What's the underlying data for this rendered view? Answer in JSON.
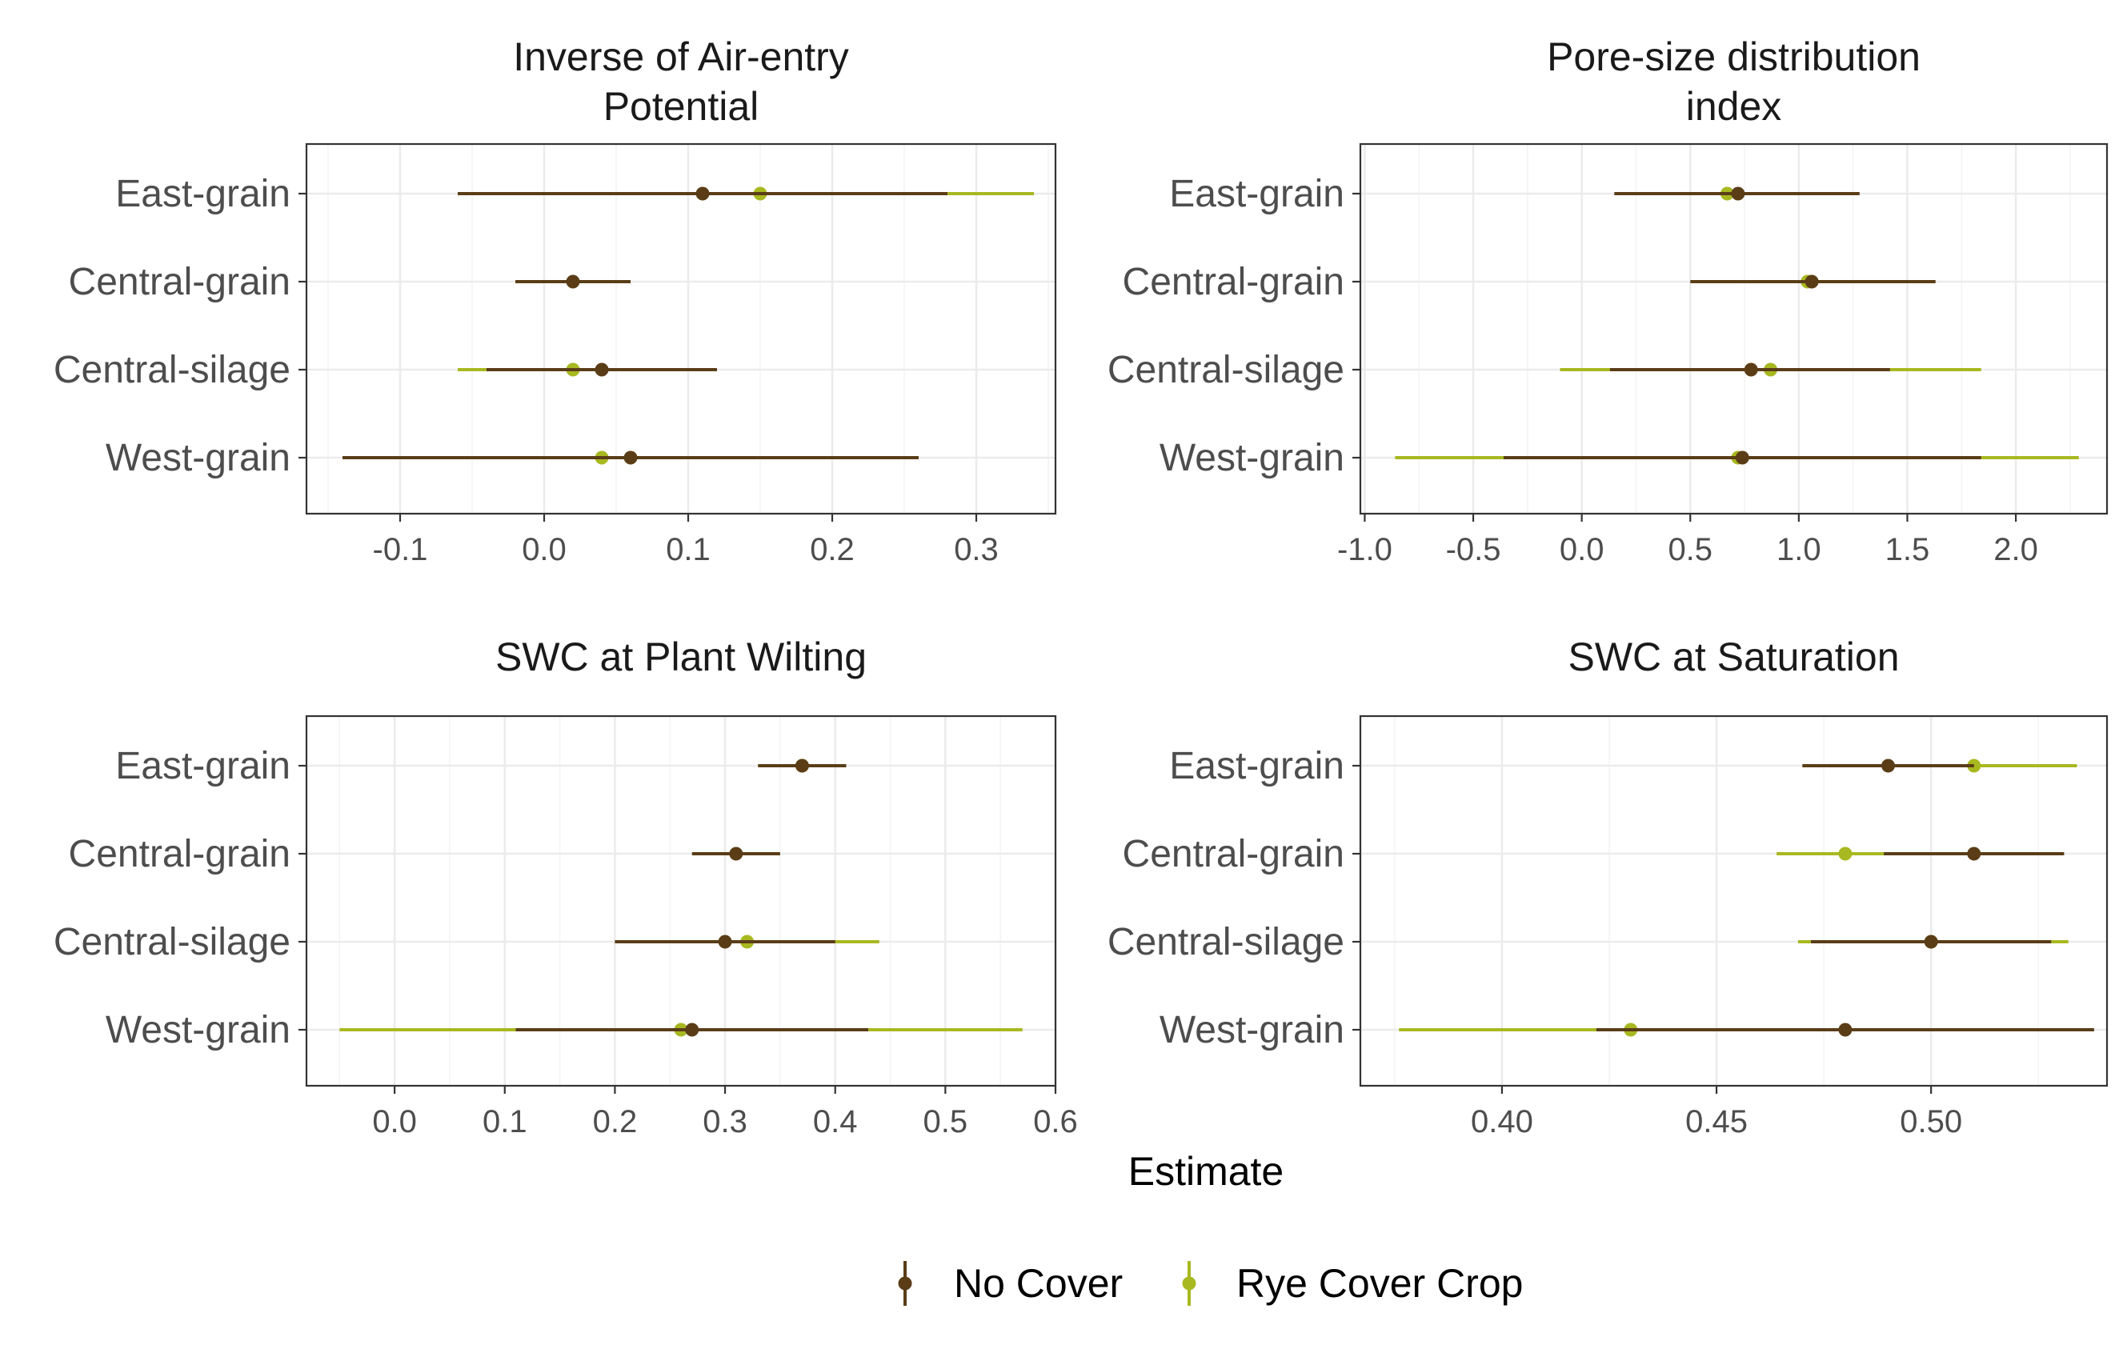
{
  "chart_data": {
    "type": "forest",
    "xlabel": "Estimate",
    "categories": [
      "East-grain",
      "Central-grain",
      "Central-silage",
      "West-grain"
    ],
    "legend": {
      "position": "bottom",
      "entries": [
        {
          "name": "No Cover",
          "color": "#5a3d17"
        },
        {
          "name": "Rye Cover Crop",
          "color": "#a8b820"
        }
      ]
    },
    "panels": [
      {
        "title": [
          "Inverse of Air-entry",
          "Potential"
        ],
        "xlim": [
          -0.165,
          0.355
        ],
        "ticks": [
          -0.1,
          0.0,
          0.1,
          0.2,
          0.3
        ],
        "tick_labels": [
          "-0.1",
          "0.0",
          "0.1",
          "0.2",
          "0.3"
        ],
        "grid": true,
        "series": [
          {
            "name": "No Cover",
            "points": [
              {
                "category": "East-grain",
                "estimate": 0.11,
                "low": -0.06,
                "high": 0.28
              },
              {
                "category": "Central-grain",
                "estimate": 0.02,
                "low": -0.02,
                "high": 0.06
              },
              {
                "category": "Central-silage",
                "estimate": 0.04,
                "low": -0.04,
                "high": 0.12
              },
              {
                "category": "West-grain",
                "estimate": 0.06,
                "low": -0.14,
                "high": 0.26
              }
            ]
          },
          {
            "name": "Rye Cover Crop",
            "points": [
              {
                "category": "East-grain",
                "estimate": 0.15,
                "low": -0.04,
                "high": 0.34
              },
              {
                "category": "Central-silage",
                "estimate": 0.02,
                "low": -0.06,
                "high": 0.1
              },
              {
                "category": "West-grain",
                "estimate": 0.04,
                "low": -0.04,
                "high": 0.12
              }
            ]
          }
        ]
      },
      {
        "title": [
          "Pore-size distribution",
          "index"
        ],
        "xlim": [
          -1.02,
          2.42
        ],
        "ticks": [
          -1.0,
          -0.5,
          0.0,
          0.5,
          1.0,
          1.5,
          2.0
        ],
        "tick_labels": [
          "-1.0",
          "-0.5",
          "0.0",
          "0.5",
          "1.0",
          "1.5",
          "2.0"
        ],
        "grid": true,
        "series": [
          {
            "name": "No Cover",
            "points": [
              {
                "category": "East-grain",
                "estimate": 0.72,
                "low": 0.15,
                "high": 1.28
              },
              {
                "category": "Central-grain",
                "estimate": 1.06,
                "low": 0.5,
                "high": 1.63
              },
              {
                "category": "Central-silage",
                "estimate": 0.78,
                "low": 0.13,
                "high": 1.42
              },
              {
                "category": "West-grain",
                "estimate": 0.74,
                "low": -0.36,
                "high": 1.84
              }
            ]
          },
          {
            "name": "Rye Cover Crop",
            "points": [
              {
                "category": "East-grain",
                "estimate": 0.67,
                "low": 0.18,
                "high": 1.18
              },
              {
                "category": "Central-grain",
                "estimate": 1.04,
                "low": 0.6,
                "high": 1.5
              },
              {
                "category": "Central-silage",
                "estimate": 0.87,
                "low": -0.1,
                "high": 1.84
              },
              {
                "category": "West-grain",
                "estimate": 0.72,
                "low": -0.86,
                "high": 2.29
              }
            ]
          }
        ]
      },
      {
        "title": [
          "SWC at Plant Wilting"
        ],
        "xlim": [
          -0.08,
          0.6
        ],
        "ticks": [
          0.0,
          0.1,
          0.2,
          0.3,
          0.4,
          0.5,
          0.6
        ],
        "tick_labels": [
          "0.0",
          "0.1",
          "0.2",
          "0.3",
          "0.4",
          "0.5",
          "0.6"
        ],
        "grid": true,
        "series": [
          {
            "name": "No Cover",
            "points": [
              {
                "category": "East-grain",
                "estimate": 0.37,
                "low": 0.33,
                "high": 0.41
              },
              {
                "category": "Central-grain",
                "estimate": 0.31,
                "low": 0.27,
                "high": 0.35
              },
              {
                "category": "Central-silage",
                "estimate": 0.3,
                "low": 0.2,
                "high": 0.4
              },
              {
                "category": "West-grain",
                "estimate": 0.27,
                "low": 0.11,
                "high": 0.43
              }
            ]
          },
          {
            "name": "Rye Cover Crop",
            "points": [
              {
                "category": "East-grain",
                "estimate": 0.37,
                "low": 0.33,
                "high": 0.41
              },
              {
                "category": "Central-silage",
                "estimate": 0.32,
                "low": 0.2,
                "high": 0.44
              },
              {
                "category": "West-grain",
                "estimate": 0.26,
                "low": -0.05,
                "high": 0.57
              }
            ]
          }
        ]
      },
      {
        "title": [
          "SWC at Saturation"
        ],
        "xlim": [
          0.367,
          0.541
        ],
        "ticks": [
          0.4,
          0.45,
          0.5
        ],
        "tick_labels": [
          "0.40",
          "0.45",
          "0.50"
        ],
        "grid": true,
        "series": [
          {
            "name": "No Cover",
            "points": [
              {
                "category": "East-grain",
                "estimate": 0.49,
                "low": 0.47,
                "high": 0.51
              },
              {
                "category": "Central-grain",
                "estimate": 0.51,
                "low": 0.489,
                "high": 0.531
              },
              {
                "category": "Central-silage",
                "estimate": 0.5,
                "low": 0.472,
                "high": 0.528
              },
              {
                "category": "West-grain",
                "estimate": 0.48,
                "low": 0.422,
                "high": 0.538
              }
            ]
          },
          {
            "name": "Rye Cover Crop",
            "points": [
              {
                "category": "East-grain",
                "estimate": 0.51,
                "low": 0.487,
                "high": 0.534
              },
              {
                "category": "Central-grain",
                "estimate": 0.48,
                "low": 0.464,
                "high": 0.497
              },
              {
                "category": "Central-silage",
                "estimate": 0.5,
                "low": 0.469,
                "high": 0.532
              },
              {
                "category": "West-grain",
                "estimate": 0.43,
                "low": 0.376,
                "high": 0.484
              }
            ]
          }
        ]
      }
    ]
  }
}
